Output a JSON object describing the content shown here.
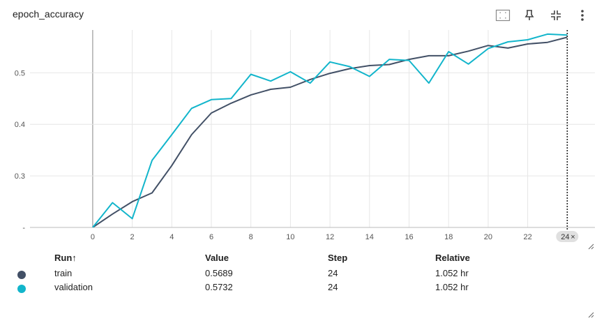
{
  "card": {
    "title": "epoch_accuracy"
  },
  "toolbar": {
    "items": [
      {
        "icon": "fit-domain-icon"
      },
      {
        "icon": "pin-icon"
      },
      {
        "icon": "collapse-icon"
      },
      {
        "icon": "more-vert-icon"
      }
    ]
  },
  "chart_data": {
    "type": "line",
    "title": "epoch_accuracy",
    "xlabel": "",
    "ylabel": "",
    "xlim": [
      -4.3,
      25.4
    ],
    "ylim": [
      0.2,
      0.583
    ],
    "xticks": [
      0,
      2,
      4,
      6,
      8,
      10,
      12,
      14,
      16,
      18,
      20,
      22
    ],
    "yticks": [
      0.2,
      0.3,
      0.4,
      0.5
    ],
    "ytick_labels": [
      "-",
      "0.3",
      "0.4",
      "0.5"
    ],
    "grid": true,
    "x": [
      0,
      1,
      2,
      3,
      4,
      5,
      6,
      7,
      8,
      9,
      10,
      11,
      12,
      13,
      14,
      15,
      16,
      17,
      18,
      19,
      20,
      21,
      22,
      23,
      24
    ],
    "series": [
      {
        "name": "train",
        "color": "#425066",
        "values": [
          0.19,
          0.226,
          0.25,
          0.267,
          0.32,
          0.38,
          0.422,
          0.441,
          0.457,
          0.468,
          0.472,
          0.487,
          0.499,
          0.508,
          0.514,
          0.516,
          0.526,
          0.533,
          0.533,
          0.542,
          0.553,
          0.548,
          0.556,
          0.559,
          0.5689
        ]
      },
      {
        "name": "validation",
        "color": "#12b5cb",
        "values": [
          0.2,
          0.248,
          0.217,
          0.33,
          0.38,
          0.431,
          0.448,
          0.45,
          0.497,
          0.484,
          0.502,
          0.48,
          0.521,
          0.512,
          0.493,
          0.526,
          0.524,
          0.48,
          0.541,
          0.517,
          0.547,
          0.56,
          0.564,
          0.575,
          0.5732
        ]
      }
    ],
    "cursor_step": "24"
  },
  "table": {
    "headers": {
      "run": "Run↑",
      "value": "Value",
      "step": "Step",
      "relative": "Relative"
    },
    "rows": [
      {
        "run": "train",
        "value": "0.5689",
        "step": "24",
        "relative": "1.052 hr",
        "color": "#425066"
      },
      {
        "run": "validation",
        "value": "0.5732",
        "step": "24",
        "relative": "1.052 hr",
        "color": "#12b5cb"
      }
    ]
  }
}
